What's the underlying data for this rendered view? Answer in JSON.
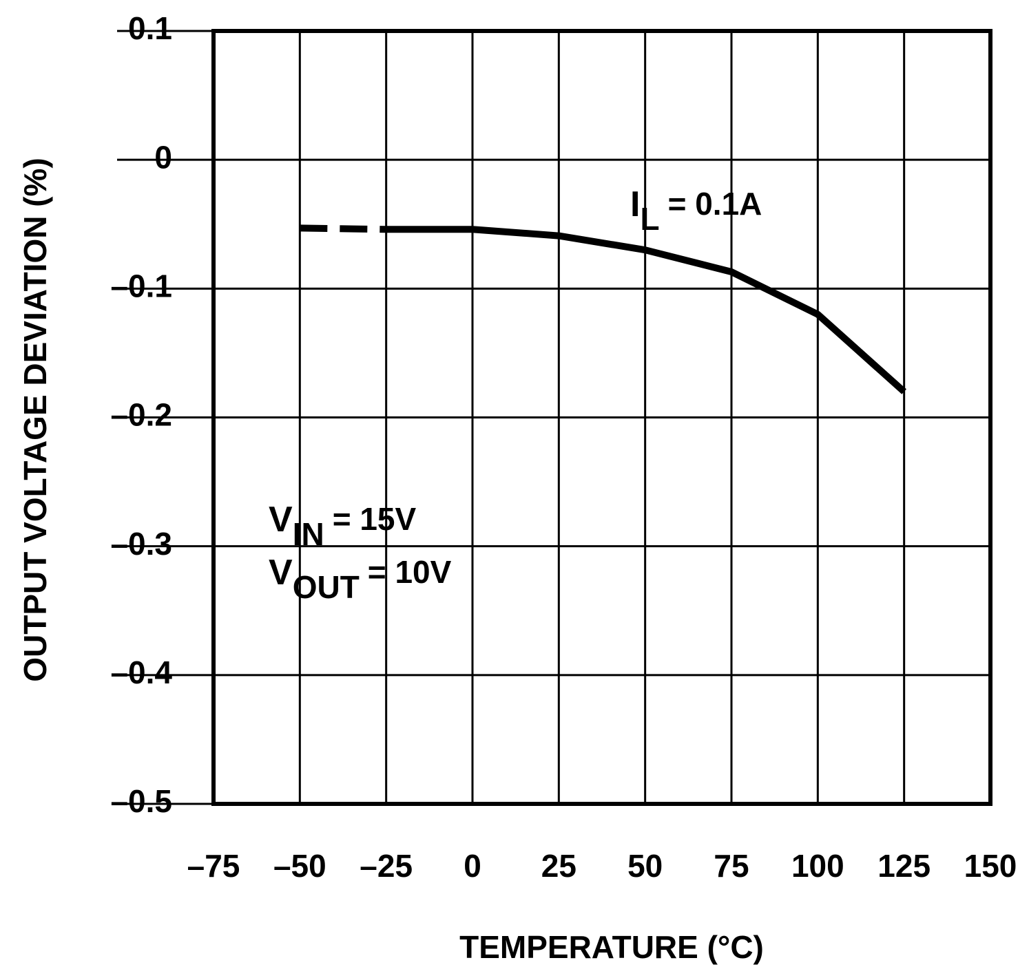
{
  "chart_data": {
    "type": "line",
    "x_label": "TEMPERATURE (°C)",
    "y_label": "OUTPUT VOLTAGE DEVIATION (%)",
    "x": [
      -50,
      -25,
      0,
      25,
      50,
      75,
      100,
      125
    ],
    "series": [
      {
        "color": "#000000",
        "dashed": true,
        "values": [
          -0.053,
          -0.054,
          null,
          null,
          null,
          null,
          null,
          null
        ]
      },
      {
        "color": "#000000",
        "dashed": false,
        "values": [
          null,
          -0.054,
          -0.054,
          -0.059,
          -0.07,
          -0.087,
          -0.12,
          -0.18
        ]
      }
    ],
    "xlim": [
      -75,
      150
    ],
    "xticks": [
      {
        "value": -75,
        "label": "–75"
      },
      {
        "value": -50,
        "label": "–50"
      },
      {
        "value": -25,
        "label": "–25"
      },
      0,
      25,
      50,
      75,
      100,
      125,
      150
    ],
    "ylim": [
      -0.5,
      0.1
    ],
    "yticks": [
      0.1,
      0,
      {
        "value": -0.1,
        "label": "–0.1"
      },
      {
        "value": -0.2,
        "label": "–0.2"
      },
      {
        "value": -0.3,
        "label": "–0.3"
      },
      {
        "value": -0.4,
        "label": "–0.4"
      },
      {
        "value": -0.5,
        "label": "–0.5"
      }
    ],
    "grid": true,
    "annotations": [
      {
        "main": "I",
        "sub": "L",
        "after": "= 0.1A"
      },
      {
        "main": "V",
        "sub": "IN",
        "after": "= 15V"
      },
      {
        "main": "V",
        "sub": "OUT",
        "after": "= 10V"
      }
    ]
  }
}
